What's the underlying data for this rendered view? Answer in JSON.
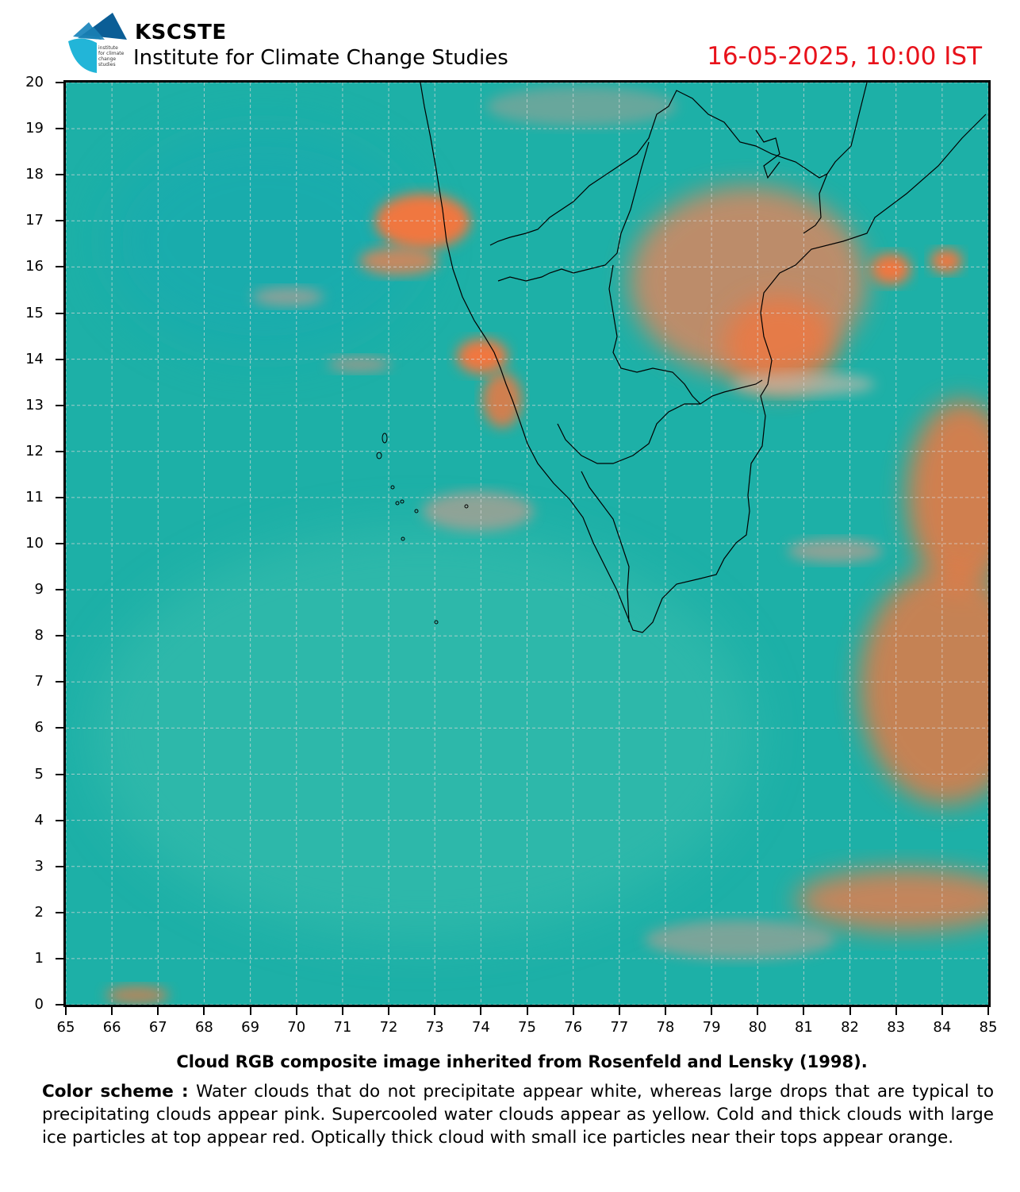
{
  "header": {
    "org_name": "KSCSTE",
    "org_subtitle": "Institute for Climate Change Studies",
    "datetime": "16-05-2025, 10:00 IST",
    "logo_text": [
      "institute",
      "for climate",
      "change",
      "studies"
    ]
  },
  "map": {
    "x_ticks": [
      "65",
      "66",
      "67",
      "68",
      "69",
      "70",
      "71",
      "72",
      "73",
      "74",
      "75",
      "76",
      "77",
      "78",
      "79",
      "80",
      "81",
      "82",
      "83",
      "84",
      "85"
    ],
    "y_ticks": [
      "20",
      "19",
      "18",
      "17",
      "16",
      "15",
      "14",
      "13",
      "12",
      "11",
      "10",
      "9",
      "8",
      "7",
      "6",
      "5",
      "4",
      "3",
      "2",
      "1",
      "0"
    ],
    "lon_range": [
      65,
      85
    ],
    "lat_range": [
      0,
      20
    ],
    "colors": {
      "ocean": "#1fb3a8",
      "cloud_orange": "#f0773f",
      "cloud_pink": "#d89a8c",
      "border": "#000000",
      "grid": "#d9d9d9",
      "datetime": "#e8121b"
    }
  },
  "caption": {
    "title": "Cloud RGB composite image inherited from Rosenfeld and Lensky (1998).",
    "scheme_label": "Color scheme :",
    "scheme_text": "Water  clouds  that do not precipitate appear  white, whereas large drops that are typical  to  precipitating  clouds  appear  pink.  Supercooled water  clouds appear as yellow. Cold and thick clouds with large ice particles at top appear red. Optically thick cloud with small ice particles near their tops appear orange."
  }
}
